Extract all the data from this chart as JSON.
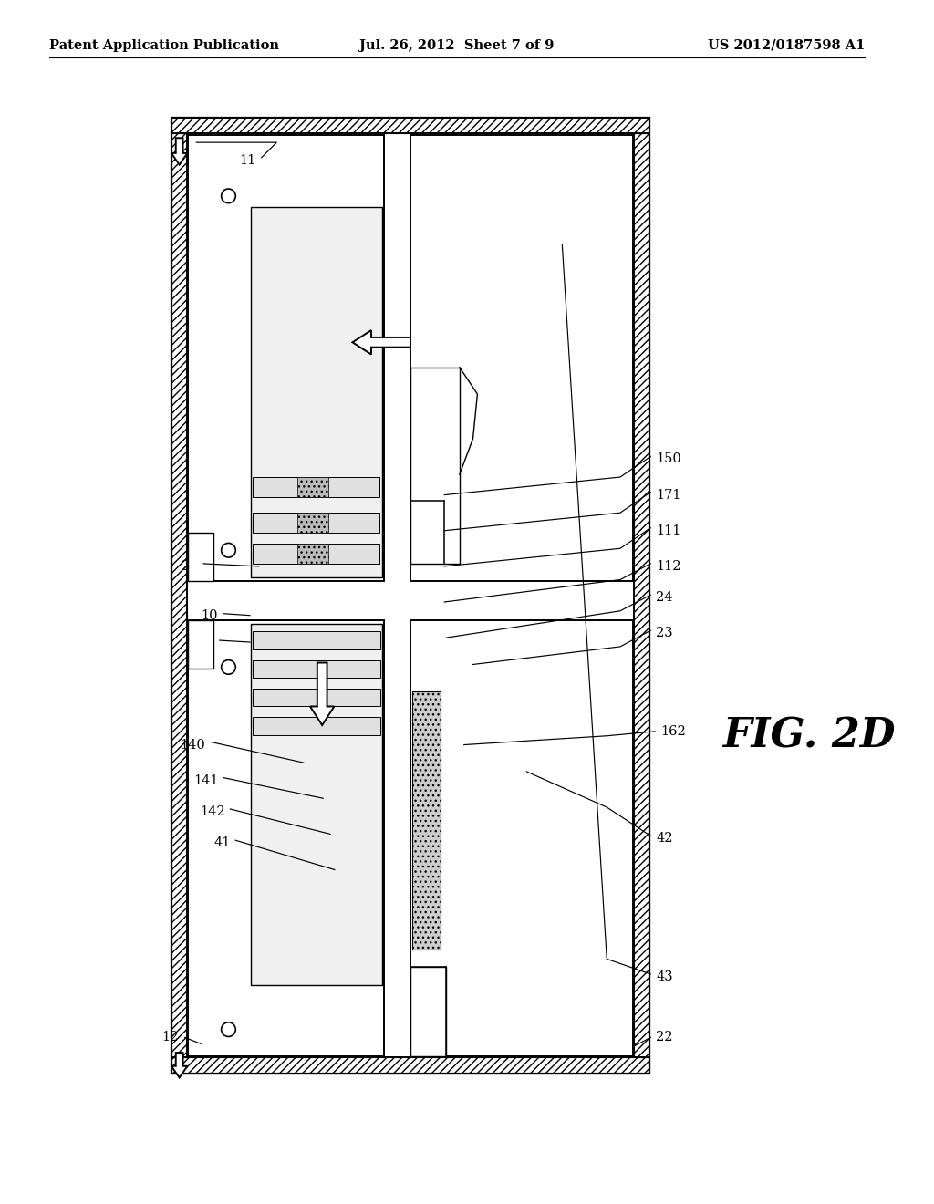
{
  "header_left": "Patent Application Publication",
  "header_center": "Jul. 26, 2012  Sheet 7 of 9",
  "header_right": "US 2012/0187598 A1",
  "figure_label": "FIG. 2D",
  "bg_color": "#ffffff"
}
